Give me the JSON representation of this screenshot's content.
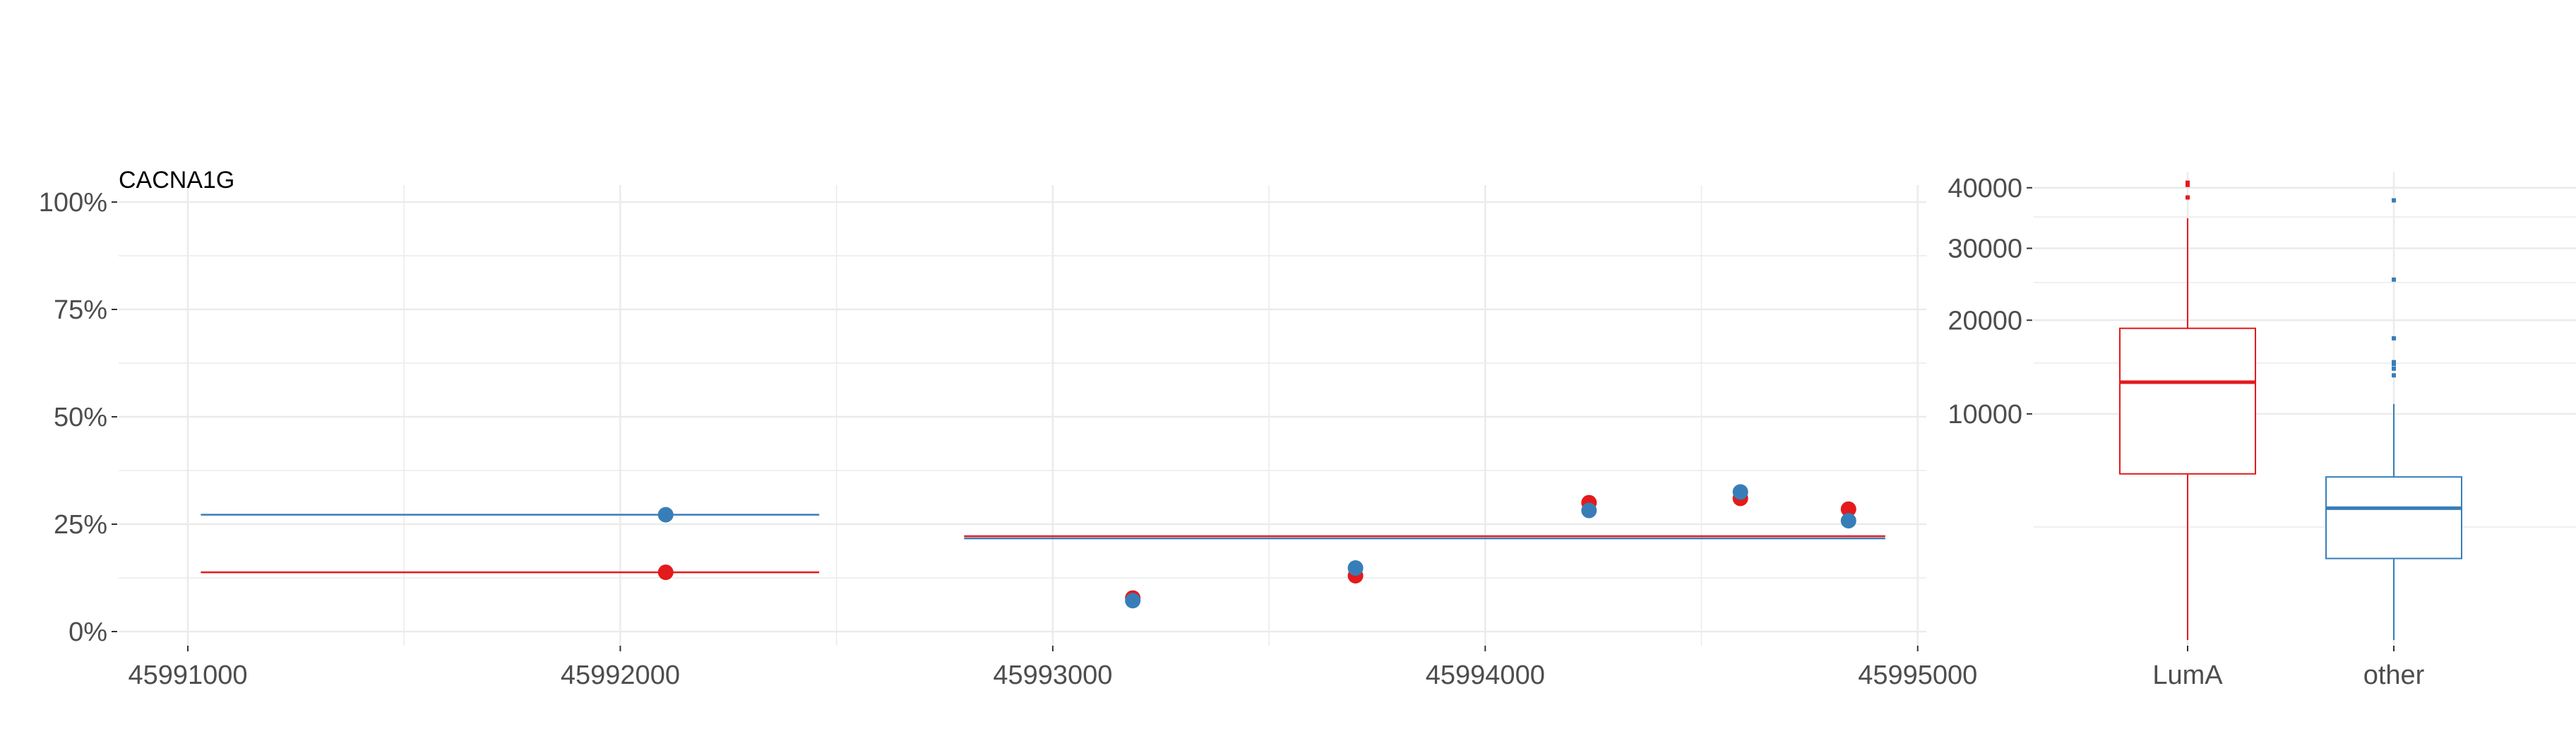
{
  "colors": {
    "red": "#e41a1c",
    "blue": "#377eb8",
    "grid": "#ebebeb",
    "text": "#4d4d4d"
  },
  "chart_data": [
    {
      "type": "scatter",
      "title": "CACNA1G",
      "xlabel": "",
      "ylabel": "",
      "xlim": [
        45990840,
        45995020
      ],
      "ylim": [
        -0.05,
        1.0
      ],
      "x_ticks": [
        45991000,
        45992000,
        45993000,
        45994000,
        45995000
      ],
      "x_tick_labels": [
        "45991000",
        "45992000",
        "45993000",
        "45994000",
        "45995000"
      ],
      "y_ticks": [
        0,
        0.25,
        0.5,
        0.75,
        1.0
      ],
      "y_tick_labels": [
        "0%",
        "25%",
        "50%",
        "75%",
        "100%"
      ],
      "grid": true,
      "series": [
        {
          "color": "#e41a1c",
          "points": [
            {
              "x": 45992105,
              "y": 0.138
            },
            {
              "x": 45993185,
              "y": 0.078
            },
            {
              "x": 45993700,
              "y": 0.13
            },
            {
              "x": 45994240,
              "y": 0.3
            },
            {
              "x": 45994590,
              "y": 0.31
            },
            {
              "x": 45994840,
              "y": 0.285
            }
          ],
          "segments": [
            {
              "x_start": 45991030,
              "x_end": 45992460,
              "y": 0.138
            },
            {
              "x_start": 45992795,
              "x_end": 45994925,
              "y": 0.222
            }
          ]
        },
        {
          "color": "#377eb8",
          "points": [
            {
              "x": 45992105,
              "y": 0.272
            },
            {
              "x": 45993185,
              "y": 0.072
            },
            {
              "x": 45993700,
              "y": 0.148
            },
            {
              "x": 45994240,
              "y": 0.282
            },
            {
              "x": 45994590,
              "y": 0.325
            },
            {
              "x": 45994840,
              "y": 0.258
            }
          ],
          "segments": [
            {
              "x_start": 45991030,
              "x_end": 45992460,
              "y": 0.272
            },
            {
              "x_start": 45992795,
              "x_end": 45994925,
              "y": 0.217
            }
          ]
        }
      ]
    },
    {
      "type": "box",
      "title": "",
      "xlabel": "",
      "ylabel": "",
      "y_scale": "sqrt",
      "ylim": [
        0,
        42500
      ],
      "y_ticks": [
        10000,
        20000,
        30000,
        40000
      ],
      "y_tick_labels": [
        "10000",
        "20000",
        "30000",
        "40000"
      ],
      "y_minor_ticks": [
        2500,
        15000,
        25000,
        35000
      ],
      "categories": [
        "LumA",
        "other"
      ],
      "grid": true,
      "boxes": [
        {
          "name": "LumA",
          "color": "#e41a1c",
          "min": 0,
          "q1": 5400,
          "median": 13000,
          "q3": 19000,
          "max": 34800,
          "outliers": [
            38300,
            40500,
            40900
          ]
        },
        {
          "name": "other",
          "color": "#377eb8",
          "min": 0,
          "q1": 1300,
          "median": 3400,
          "q3": 5200,
          "max": 10900,
          "outliers": [
            13700,
            14400,
            14900,
            15100,
            17800,
            25400,
            37800
          ]
        }
      ]
    }
  ]
}
